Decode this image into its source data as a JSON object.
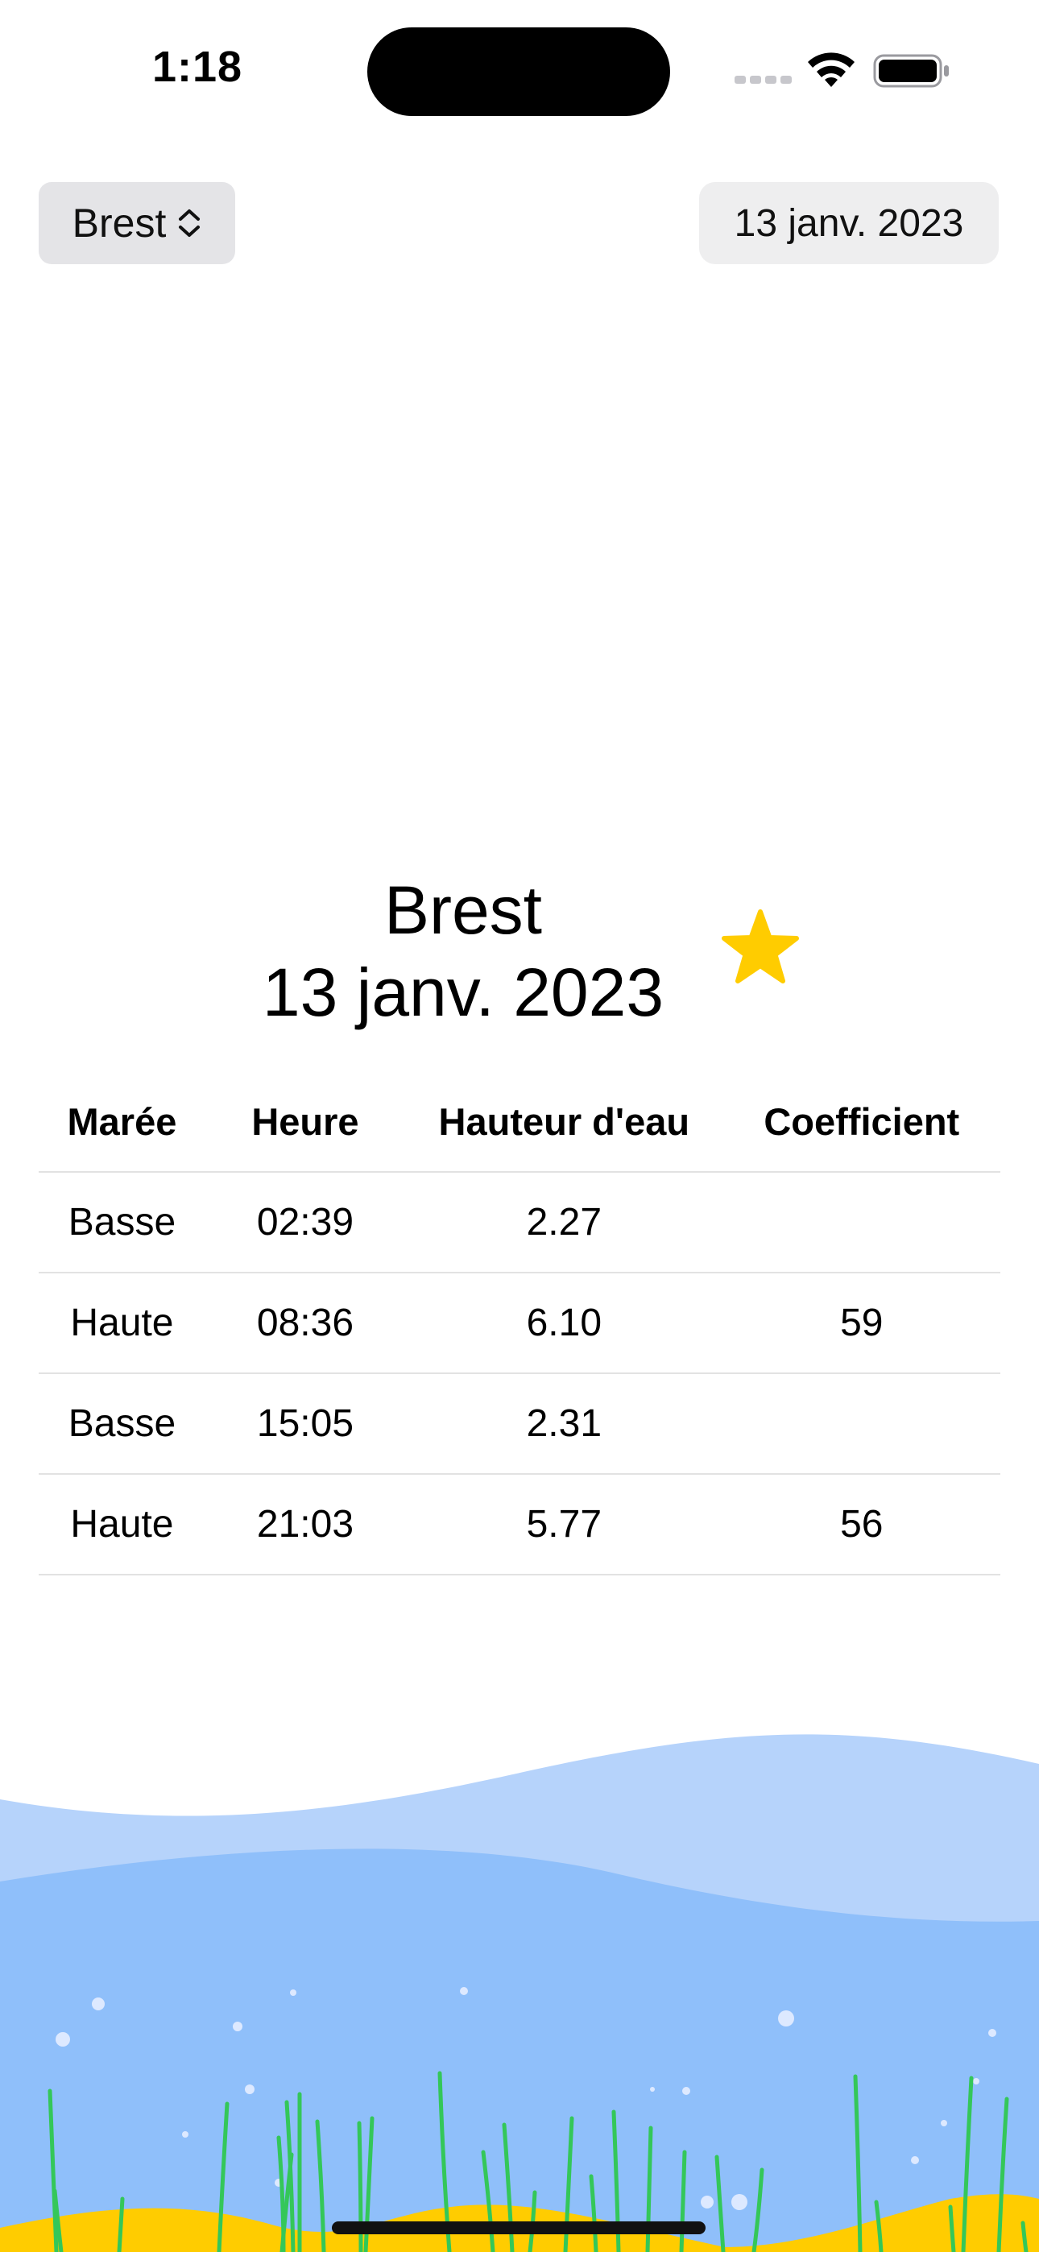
{
  "status_bar": {
    "time": "1:18"
  },
  "toolbar": {
    "location_label": "Brest",
    "date_label": "13 janv. 2023"
  },
  "header": {
    "city": "Brest",
    "date": "13 janv. 2023",
    "favorite": true
  },
  "table": {
    "headers": {
      "tide": "Marée",
      "time": "Heure",
      "height": "Hauteur d'eau",
      "coefficient": "Coefficient"
    },
    "rows": [
      {
        "tide": "Basse",
        "time": "02:39",
        "height": "2.27",
        "coefficient": ""
      },
      {
        "tide": "Haute",
        "time": "08:36",
        "height": "6.10",
        "coefficient": "59"
      },
      {
        "tide": "Basse",
        "time": "15:05",
        "height": "2.31",
        "coefficient": ""
      },
      {
        "tide": "Haute",
        "time": "21:03",
        "height": "5.77",
        "coefficient": "56"
      }
    ]
  },
  "colors": {
    "star": "#ffcc00",
    "wave_light": "#b6d3fb",
    "wave_mid": "#8fbffa",
    "sand": "#ffcc00",
    "seaweed": "#34c759",
    "bubble": "#dde9ff"
  },
  "icons": {
    "picker_chevron": "chevron-up-down-icon",
    "favorite": "star-fill-icon",
    "wifi": "wifi-icon",
    "battery": "battery-icon",
    "cellular": "cellular-signal-icon"
  }
}
